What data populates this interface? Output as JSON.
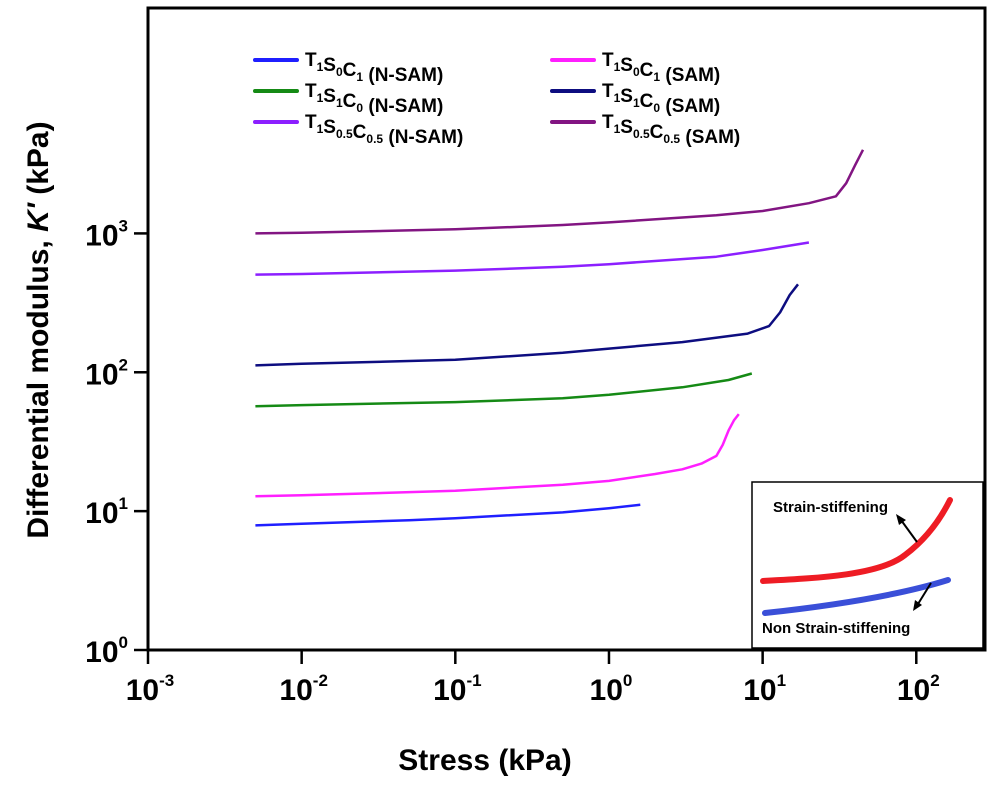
{
  "chart_data": {
    "type": "line",
    "xlabel": "Stress (kPa)",
    "ylabel": {
      "prefix": "Differential modulus, ",
      "symbol": "K'",
      "suffix": " (kPa)"
    },
    "xscale": "log",
    "yscale": "log",
    "xlim": [
      0.001,
      280
    ],
    "ylim": [
      1,
      42000
    ],
    "x_ticks": [
      {
        "base": "10",
        "exp": "-3",
        "value": 0.001
      },
      {
        "base": "10",
        "exp": "-2",
        "value": 0.01
      },
      {
        "base": "10",
        "exp": "-1",
        "value": 0.1
      },
      {
        "base": "10",
        "exp": "0",
        "value": 1
      },
      {
        "base": "10",
        "exp": "1",
        "value": 10
      },
      {
        "base": "10",
        "exp": "2",
        "value": 100
      }
    ],
    "y_ticks": [
      {
        "base": "10",
        "exp": "0",
        "value": 1
      },
      {
        "base": "10",
        "exp": "1",
        "value": 10
      },
      {
        "base": "10",
        "exp": "2",
        "value": 100
      },
      {
        "base": "10",
        "exp": "3",
        "value": 1000
      }
    ],
    "grid": false,
    "legend_position": "top",
    "series": [
      {
        "name": "T1S0C1 (N-SAM)",
        "label_parts": [
          [
            "T",
            ""
          ],
          [
            "1",
            "sub"
          ],
          [
            "S",
            ""
          ],
          [
            "0",
            "sub"
          ],
          [
            "C",
            ""
          ],
          [
            "1",
            "sub"
          ],
          [
            " (N-SAM)",
            ""
          ]
        ],
        "color": "#1f1fff",
        "x": [
          0.005,
          0.01,
          0.05,
          0.1,
          0.5,
          1,
          1.6
        ],
        "y": [
          7.9,
          8.1,
          8.6,
          8.9,
          9.8,
          10.5,
          11.1
        ]
      },
      {
        "name": "T1S0C1 (SAM)",
        "label_parts": [
          [
            "T",
            ""
          ],
          [
            "1",
            "sub"
          ],
          [
            "S",
            ""
          ],
          [
            "0",
            "sub"
          ],
          [
            "C",
            ""
          ],
          [
            "1",
            "sub"
          ],
          [
            " (SAM)",
            ""
          ]
        ],
        "color": "#ff1fff",
        "x": [
          0.005,
          0.01,
          0.1,
          0.5,
          1,
          2,
          3,
          4,
          5,
          5.5,
          6,
          6.5,
          7
        ],
        "y": [
          12.8,
          13.0,
          14.0,
          15.5,
          16.5,
          18.5,
          20,
          22,
          25,
          30,
          38,
          45,
          50
        ]
      },
      {
        "name": "T1S1C0 (N-SAM)",
        "label_parts": [
          [
            "T",
            ""
          ],
          [
            "1",
            "sub"
          ],
          [
            "S",
            ""
          ],
          [
            "1",
            "sub"
          ],
          [
            "C",
            ""
          ],
          [
            "0",
            "sub"
          ],
          [
            " (N-SAM)",
            ""
          ]
        ],
        "color": "#158a15",
        "x": [
          0.005,
          0.01,
          0.1,
          0.5,
          1,
          3,
          6,
          8.5
        ],
        "y": [
          57,
          58,
          61,
          65,
          69,
          78,
          88,
          98
        ]
      },
      {
        "name": "T1S1C0 (SAM)",
        "label_parts": [
          [
            "T",
            ""
          ],
          [
            "1",
            "sub"
          ],
          [
            "S",
            ""
          ],
          [
            "1",
            "sub"
          ],
          [
            "C",
            ""
          ],
          [
            "0",
            "sub"
          ],
          [
            " (SAM)",
            ""
          ]
        ],
        "color": "#0d0d80",
        "x": [
          0.005,
          0.01,
          0.1,
          0.5,
          1,
          3,
          8,
          11,
          13,
          15,
          17
        ],
        "y": [
          112,
          115,
          123,
          138,
          148,
          165,
          190,
          215,
          270,
          360,
          430
        ]
      },
      {
        "name": "T1S0.5C0.5 (N-SAM)",
        "label_parts": [
          [
            "T",
            ""
          ],
          [
            "1",
            "sub"
          ],
          [
            "S",
            ""
          ],
          [
            "0.5",
            "sub"
          ],
          [
            "C",
            ""
          ],
          [
            "0.5",
            "sub"
          ],
          [
            " (N-SAM)",
            ""
          ]
        ],
        "color": "#8c1fff",
        "x": [
          0.005,
          0.01,
          0.1,
          0.5,
          1,
          5,
          10,
          20
        ],
        "y": [
          505,
          510,
          540,
          575,
          600,
          680,
          760,
          860
        ]
      },
      {
        "name": "T1S0.5C0.5 (SAM)",
        "label_parts": [
          [
            "T",
            ""
          ],
          [
            "1",
            "sub"
          ],
          [
            "S",
            ""
          ],
          [
            "0.5",
            "sub"
          ],
          [
            "C",
            ""
          ],
          [
            "0.5",
            "sub"
          ],
          [
            " (SAM)",
            ""
          ]
        ],
        "color": "#821582",
        "x": [
          0.005,
          0.01,
          0.1,
          0.5,
          1,
          5,
          10,
          20,
          30,
          35,
          40,
          45
        ],
        "y": [
          1000,
          1010,
          1070,
          1150,
          1200,
          1350,
          1450,
          1650,
          1850,
          2300,
          3100,
          4000
        ]
      }
    ],
    "inset": {
      "labels": {
        "upper": "Strain-stiffening",
        "lower": "Non Strain-stiffening"
      },
      "colors": {
        "upper": "#ee1c24",
        "lower": "#3a4fd8"
      }
    }
  }
}
